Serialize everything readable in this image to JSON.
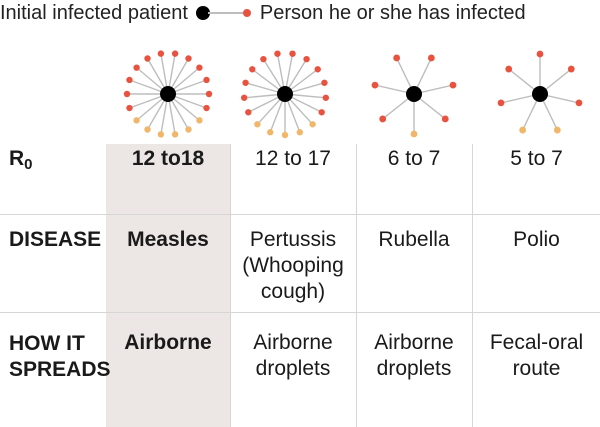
{
  "legend": {
    "initial_label": "Initial infected patient",
    "infected_label": "Person he or she has infected"
  },
  "colors": {
    "patient": "#000000",
    "infected_red": "#e8533f",
    "infected_orange": "#f0b76a",
    "spoke": "#bdbdbd",
    "highlight": "#ece7e4",
    "grid": "#d6d6d6"
  },
  "row_labels": {
    "r0_main": "R",
    "r0_sub": "0",
    "disease": "DISEASE",
    "spreads_line1": "HOW IT",
    "spreads_line2": "SPREADS"
  },
  "diseases": [
    {
      "r0": "12 to18",
      "name_lines": [
        "Measles"
      ],
      "spread_lines": [
        "Airborne"
      ],
      "highlighted": true,
      "red_count": 12,
      "orange_count": 6
    },
    {
      "r0": "12 to 17",
      "name_lines": [
        "Pertussis",
        "(Whooping",
        "cough)"
      ],
      "spread_lines": [
        "Airborne",
        "droplets"
      ],
      "highlighted": false,
      "red_count": 12,
      "orange_count": 5
    },
    {
      "r0": "6 to 7",
      "name_lines": [
        "Rubella"
      ],
      "spread_lines": [
        "Airborne",
        "droplets"
      ],
      "highlighted": false,
      "red_count": 6,
      "orange_count": 1
    },
    {
      "r0": "5 to 7",
      "name_lines": [
        "Polio"
      ],
      "spread_lines": [
        "Fecal-oral",
        "route"
      ],
      "highlighted": false,
      "red_count": 5,
      "orange_count": 2
    }
  ]
}
